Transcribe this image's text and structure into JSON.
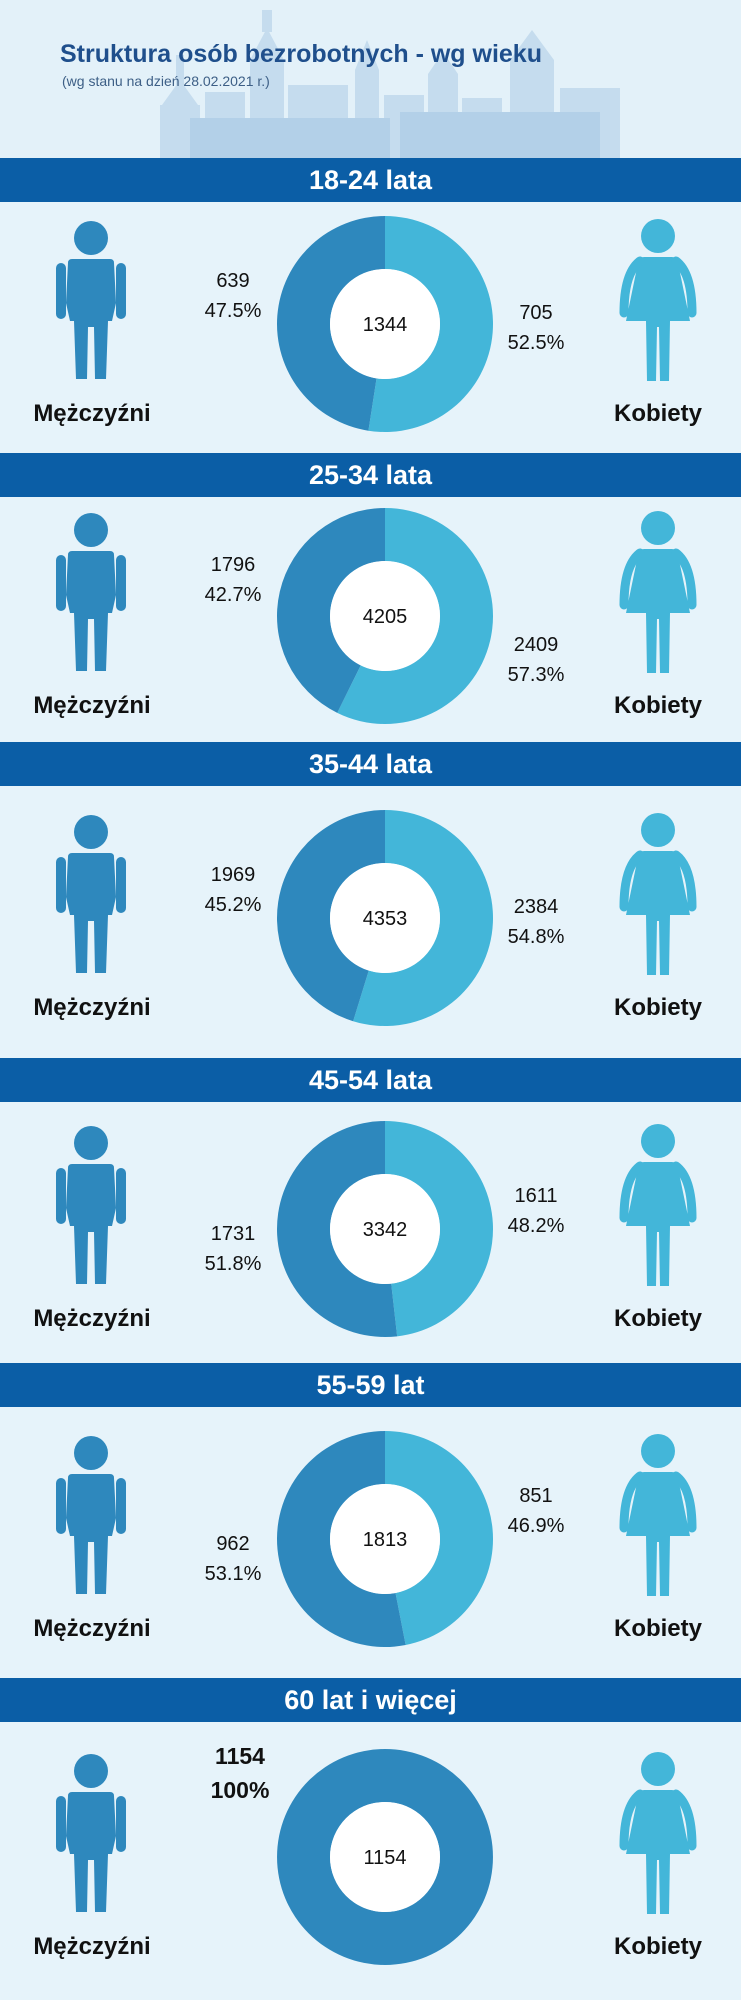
{
  "header": {
    "title": "Struktura osób bezrobotnych - wg wieku",
    "subtitle": "(wg stanu na dzień 28.02.2021 r.)"
  },
  "labels": {
    "men": "Mężczyźni",
    "women": "Kobiety"
  },
  "colors": {
    "band": "#0b5ea6",
    "men": "#2e88bd",
    "women": "#43b6d9",
    "background": "#e6f3fa"
  },
  "chart_data": [
    {
      "type": "pie",
      "title": "18-24 lata",
      "total": "1344",
      "slices": [
        {
          "name": "Mężczyźni",
          "value": 639,
          "percent": "47.5%"
        },
        {
          "name": "Kobiety",
          "value": 705,
          "percent": "52.5%"
        }
      ]
    },
    {
      "type": "pie",
      "title": "25-34 lata",
      "total": "4205",
      "slices": [
        {
          "name": "Mężczyźni",
          "value": 1796,
          "percent": "42.7%"
        },
        {
          "name": "Kobiety",
          "value": 2409,
          "percent": "57.3%"
        }
      ]
    },
    {
      "type": "pie",
      "title": "35-44 lata",
      "total": "4353",
      "slices": [
        {
          "name": "Mężczyźni",
          "value": 1969,
          "percent": "45.2%"
        },
        {
          "name": "Kobiety",
          "value": 2384,
          "percent": "54.8%"
        }
      ]
    },
    {
      "type": "pie",
      "title": "45-54 lata",
      "total": "3342",
      "slices": [
        {
          "name": "Mężczyźni",
          "value": 1731,
          "percent": "51.8%"
        },
        {
          "name": "Kobiety",
          "value": 1611,
          "percent": "48.2%"
        }
      ]
    },
    {
      "type": "pie",
      "title": "55-59 lat",
      "total": "1813",
      "slices": [
        {
          "name": "Mężczyźni",
          "value": 962,
          "percent": "53.1%"
        },
        {
          "name": "Kobiety",
          "value": 851,
          "percent": "46.9%"
        }
      ]
    },
    {
      "type": "pie",
      "title": "60 lat i więcej",
      "total": "1154",
      "slices": [
        {
          "name": "Mężczyźni",
          "value": 1154,
          "percent": "100%"
        }
      ]
    }
  ]
}
